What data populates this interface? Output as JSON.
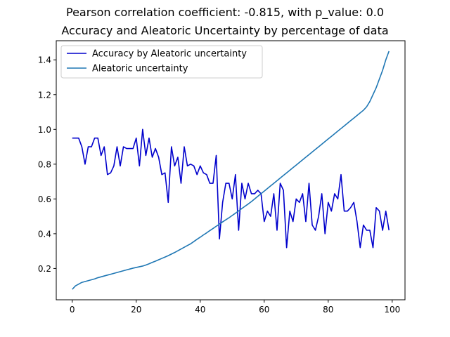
{
  "figure": {
    "suptitle": "Pearson correlation coefficient: -0.815, with p_value: 0.0",
    "title": "Accuracy and Aleatoric Uncertainty by percentage of data"
  },
  "chart_data": {
    "type": "line",
    "title": "Accuracy and Aleatoric Uncertainty by percentage of data",
    "xlabel": "",
    "ylabel": "",
    "xlim": [
      -5,
      104
    ],
    "ylim": [
      0.02,
      1.51
    ],
    "xticks": [
      0,
      20,
      40,
      60,
      80,
      100
    ],
    "yticks": [
      0.2,
      0.4,
      0.6,
      0.8,
      1.0,
      1.2,
      1.4
    ],
    "grid": false,
    "legend_position": "top-left",
    "series": [
      {
        "name": "Accuracy by Aleatoric uncertainty",
        "color": "#0000cc",
        "values": [
          0.95,
          0.95,
          0.95,
          0.9,
          0.8,
          0.9,
          0.9,
          0.95,
          0.95,
          0.85,
          0.9,
          0.74,
          0.75,
          0.79,
          0.9,
          0.79,
          0.9,
          0.89,
          0.89,
          0.89,
          0.95,
          0.79,
          1.0,
          0.85,
          0.95,
          0.84,
          0.89,
          0.84,
          0.74,
          0.75,
          0.58,
          0.9,
          0.79,
          0.84,
          0.69,
          0.9,
          0.79,
          0.8,
          0.79,
          0.74,
          0.79,
          0.75,
          0.74,
          0.69,
          0.69,
          0.85,
          0.37,
          0.58,
          0.69,
          0.69,
          0.6,
          0.74,
          0.42,
          0.69,
          0.6,
          0.69,
          0.63,
          0.63,
          0.65,
          0.63,
          0.47,
          0.53,
          0.5,
          0.63,
          0.42,
          0.69,
          0.65,
          0.32,
          0.53,
          0.47,
          0.6,
          0.58,
          0.63,
          0.47,
          0.69,
          0.45,
          0.42,
          0.5,
          0.63,
          0.4,
          0.58,
          0.53,
          0.63,
          0.6,
          0.74,
          0.53,
          0.53,
          0.55,
          0.58,
          0.47,
          0.32,
          0.45,
          0.42,
          0.42,
          0.32,
          0.55,
          0.53,
          0.42,
          0.53,
          0.42
        ]
      },
      {
        "name": "Aleatoric uncertainty",
        "color": "#1f77b4",
        "values": [
          0.08,
          0.1,
          0.11,
          0.12,
          0.125,
          0.13,
          0.135,
          0.14,
          0.147,
          0.152,
          0.157,
          0.162,
          0.167,
          0.172,
          0.177,
          0.182,
          0.187,
          0.192,
          0.197,
          0.202,
          0.206,
          0.21,
          0.214,
          0.22,
          0.227,
          0.235,
          0.242,
          0.25,
          0.258,
          0.266,
          0.274,
          0.283,
          0.292,
          0.302,
          0.312,
          0.322,
          0.332,
          0.342,
          0.355,
          0.368,
          0.38,
          0.393,
          0.405,
          0.418,
          0.43,
          0.443,
          0.455,
          0.468,
          0.48,
          0.492,
          0.505,
          0.518,
          0.531,
          0.545,
          0.558,
          0.571,
          0.585,
          0.6,
          0.615,
          0.63,
          0.645,
          0.66,
          0.675,
          0.69,
          0.705,
          0.72,
          0.735,
          0.75,
          0.765,
          0.78,
          0.795,
          0.81,
          0.825,
          0.84,
          0.855,
          0.87,
          0.885,
          0.9,
          0.915,
          0.93,
          0.945,
          0.96,
          0.975,
          0.99,
          1.005,
          1.02,
          1.035,
          1.05,
          1.065,
          1.08,
          1.095,
          1.11,
          1.13,
          1.16,
          1.2,
          1.24,
          1.29,
          1.34,
          1.4,
          1.45
        ]
      }
    ]
  }
}
